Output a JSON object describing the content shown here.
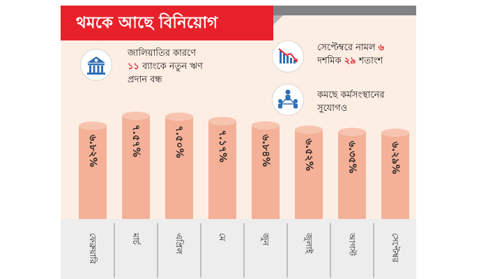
{
  "title": "থমকে আছে বিনিয়োগ",
  "callouts": {
    "fraud": {
      "icon": "bank-icon",
      "line1": "জালিয়াতির কারণে",
      "highlight": "১১",
      "rest": " ব্যাংকে নতুন ঋণ",
      "line3": "প্রদান বন্ধ"
    },
    "september": {
      "icon": "declining-chart-icon",
      "line1_pre": "সেপ্টেম্বরে নামল ",
      "line1_num": "৬",
      "line2_pre": "দশমিক ",
      "line2_num": "২৯",
      "line2_post": " শতাংশ"
    },
    "jobs": {
      "icon": "people-network-icon",
      "line1": "কমছে কর্মসংস্থানের",
      "line2": "সুযোগও"
    }
  },
  "colors": {
    "banner": "#e8202a",
    "background": "#fdeee4",
    "bar": "#f4b197",
    "axis_band": "#ededed"
  },
  "chart_data": {
    "type": "bar",
    "categories": [
      "ফেব্রুয়ারি",
      "মার্চ",
      "এপ্রিল",
      "মে",
      "জুন",
      "জুলাই",
      "আগস্ট",
      "সেপ্টেম্বর"
    ],
    "values": [
      6.82,
      7.57,
      7.5,
      7.17,
      6.84,
      6.52,
      6.35,
      6.29
    ],
    "labels": [
      "৬.৮২%",
      "৭.৫৭%",
      "৭.৫০%",
      "৭.১৭%",
      "৬.৮৪%",
      "৬.৫২%",
      "৬.৩৫%",
      "৬.২৯%"
    ],
    "grid": false,
    "legend": "none"
  }
}
